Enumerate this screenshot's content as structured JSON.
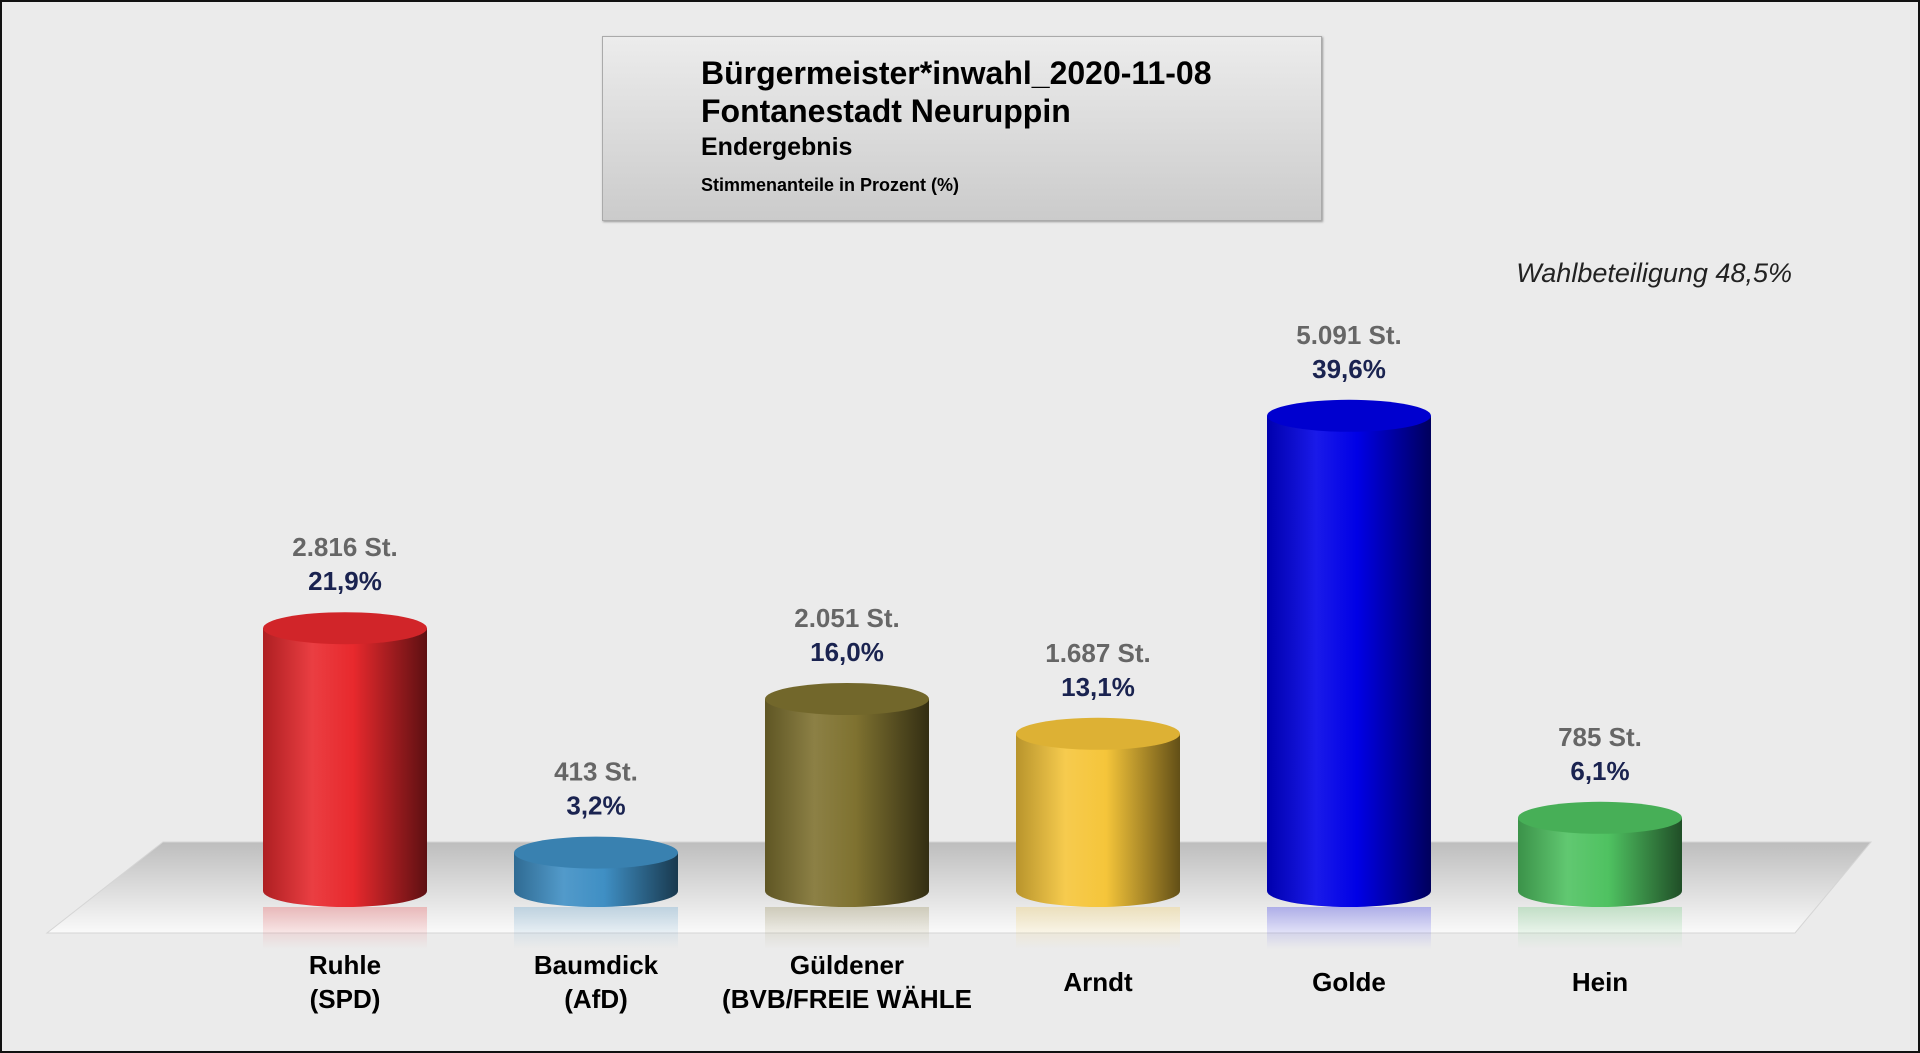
{
  "chart_data": {
    "type": "bar",
    "title": "Bürgermeister*inwahl_2020-11-08",
    "subtitle": "Fontanestadt Neuruppin",
    "subtitle2": "Endergebnis",
    "subtitle3": "Stimmenanteile in Prozent (%)",
    "annotation": "Wahlbeteiligung 48,5%",
    "categories": [
      [
        "Ruhle",
        "(SPD)"
      ],
      [
        "Baumdick",
        "(AfD)"
      ],
      [
        "Güldener",
        "(BVB/FREIE WÄHLE"
      ],
      [
        "Arndt"
      ],
      [
        "Golde"
      ],
      [
        "Hein"
      ]
    ],
    "values": [
      21.9,
      3.2,
      16.0,
      13.1,
      39.6,
      6.1
    ],
    "value_labels": [
      "21,9%",
      "3,2%",
      "16,0%",
      "13,1%",
      "39,6%",
      "6,1%"
    ],
    "votes": [
      2816,
      413,
      2051,
      1687,
      5091,
      785
    ],
    "vote_labels": [
      "2.816 St.",
      "413 St.",
      "2.051 St.",
      "1.687 St.",
      "5.091 St.",
      "785 St."
    ],
    "colors": [
      "#e8292d",
      "#3f8fc4",
      "#7f7230",
      "#f5c53a",
      "#0000e6",
      "#4fc261"
    ],
    "ylim": [
      0,
      40
    ],
    "grid": false,
    "legend": "none"
  }
}
